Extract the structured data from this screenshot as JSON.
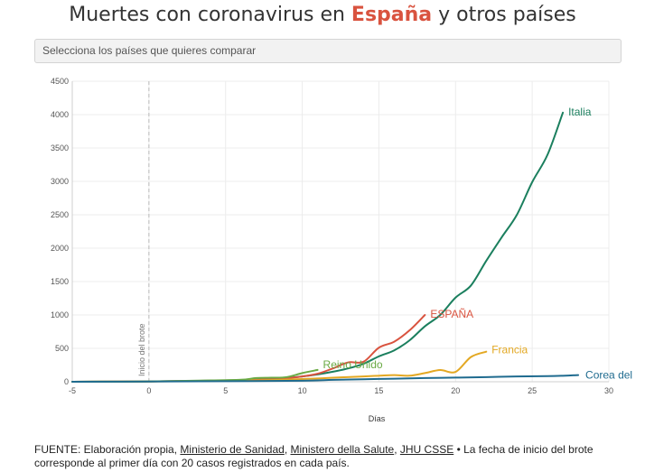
{
  "header": {
    "title_prefix": "Muertes con coronavirus en ",
    "title_highlight": "España",
    "title_suffix": " y otros países",
    "highlight_color": "#d9533f"
  },
  "selector": {
    "placeholder": "Selecciona los países que quieres comparar"
  },
  "footer": {
    "prefix": "FUENTE: Elaboración propia, ",
    "link_1": "Ministerio de Sanidad",
    "sep_1": ", ",
    "link_2": "Ministero della Salute",
    "sep_2": ", ",
    "link_3": "JHU CSSE",
    "suffix": " • La fecha de inicio del brote corresponde al primer día con 20 casos registrados en cada país."
  },
  "chart_data": {
    "type": "line",
    "xlabel": "Días",
    "ylabel": "",
    "xlim": [
      -5,
      30
    ],
    "ylim": [
      0,
      4500
    ],
    "xticks": [
      -5,
      0,
      5,
      10,
      15,
      20,
      25,
      30
    ],
    "yticks": [
      0,
      500,
      1000,
      1500,
      2000,
      2500,
      3000,
      3500,
      4000,
      4500
    ],
    "grid": true,
    "annotation": {
      "x": 0,
      "label": "Inicio del brote"
    },
    "series": [
      {
        "name": "Italia",
        "color": "#1b7f5e",
        "x": [
          -5,
          -2,
          0,
          2,
          4,
          6,
          7,
          8,
          9,
          10,
          11,
          12,
          13,
          14,
          15,
          16,
          17,
          18,
          19,
          20,
          21,
          22,
          23,
          24,
          25,
          26,
          27
        ],
        "y": [
          0,
          2,
          5,
          10,
          15,
          25,
          30,
          50,
          60,
          80,
          110,
          150,
          200,
          270,
          380,
          470,
          620,
          830,
          1000,
          1260,
          1440,
          1810,
          2160,
          2500,
          2990,
          3400,
          4030
        ]
      },
      {
        "name": "ESPAÑA",
        "color": "#d9533f",
        "x": [
          -5,
          -2,
          0,
          2,
          4,
          6,
          7,
          8,
          9,
          10,
          11,
          12,
          13,
          14,
          15,
          16,
          17,
          18
        ],
        "y": [
          0,
          3,
          5,
          10,
          15,
          20,
          30,
          40,
          55,
          80,
          120,
          200,
          290,
          300,
          510,
          600,
          770,
          1000
        ]
      },
      {
        "name": "Francia",
        "color": "#e3a823",
        "x": [
          -5,
          -2,
          0,
          2,
          4,
          6,
          8,
          10,
          12,
          14,
          15,
          16,
          17,
          18,
          19,
          20,
          21,
          22
        ],
        "y": [
          0,
          2,
          4,
          8,
          12,
          18,
          25,
          40,
          60,
          80,
          90,
          100,
          91,
          130,
          175,
          148,
          370,
          450
        ]
      },
      {
        "name": "Reino Unido",
        "color": "#6aaa44",
        "x": [
          -5,
          -2,
          0,
          2,
          4,
          6,
          7,
          8,
          9,
          10,
          11
        ],
        "y": [
          0,
          2,
          5,
          12,
          20,
          30,
          55,
          60,
          70,
          130,
          177
        ]
      },
      {
        "name": "Corea del",
        "color": "#1f6b8f",
        "x": [
          -5,
          0,
          5,
          10,
          12,
          14,
          16,
          18,
          20,
          22,
          24,
          26,
          27,
          28
        ],
        "y": [
          0,
          3,
          8,
          15,
          28,
          38,
          45,
          55,
          62,
          70,
          80,
          84,
          90,
          100
        ]
      }
    ]
  }
}
